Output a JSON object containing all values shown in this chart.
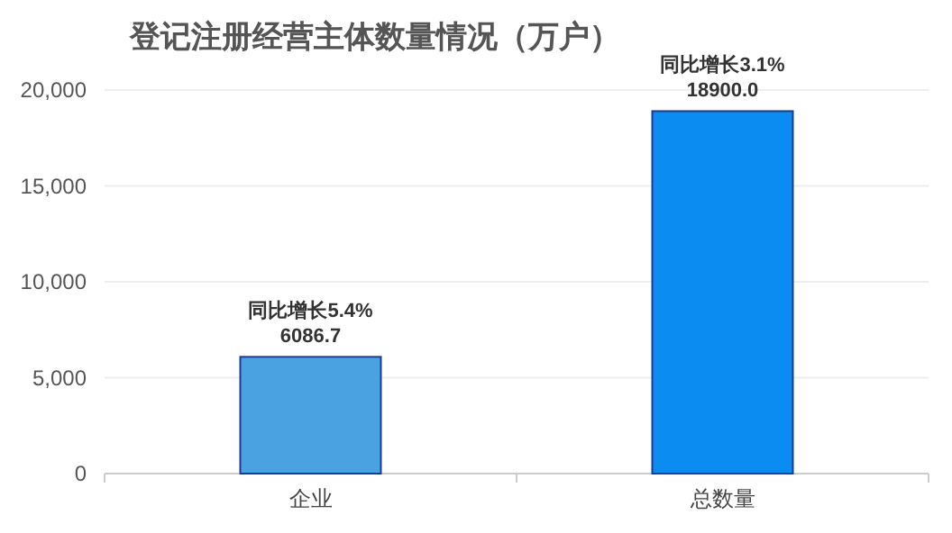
{
  "chart_data": {
    "type": "bar",
    "title": "登记注册经营主体数量情况（万户）",
    "categories": [
      "企业",
      "总数量"
    ],
    "values": [
      6086.7,
      18900.0
    ],
    "colors": [
      "#4aa3e0",
      "#0a8cf0"
    ],
    "value_labels": [
      "6086.7",
      "18900.0"
    ],
    "annotations": [
      {
        "text": "同比增长5.4%",
        "x": "企业",
        "y": 6086.7
      },
      {
        "text": "同比增长3.1%",
        "x": "总数量",
        "y": 18900.0
      }
    ],
    "ylim": [
      0,
      20000
    ],
    "yticks": [
      0,
      {
        "value": 5000,
        "label": "5,000"
      },
      {
        "value": 10000,
        "label": "10,000"
      },
      {
        "value": 15000,
        "label": "15,000"
      },
      {
        "value": 20000,
        "label": "20,000"
      }
    ],
    "grid": "y"
  }
}
